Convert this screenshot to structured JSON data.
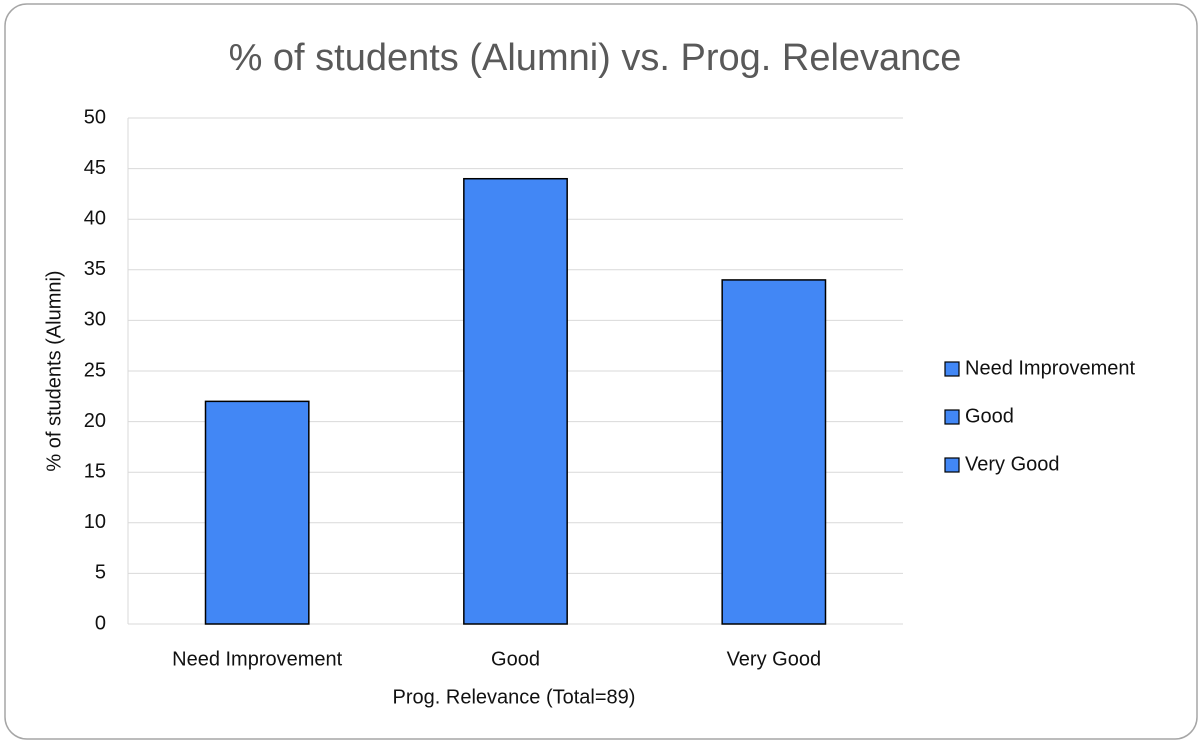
{
  "chart_data": {
    "type": "bar",
    "title": "% of students (Alumni) vs. Prog. Relevance",
    "x_label": "Prog. Relevance (Total=89)",
    "y_label": "% of students (Alumni)",
    "categories": [
      "Need Improvement",
      "Good",
      "Very Good"
    ],
    "values": [
      22,
      44,
      34
    ],
    "color": "#4287f5",
    "ylim": [
      0,
      50
    ],
    "yticks": [
      0,
      5,
      10,
      15,
      20,
      25,
      30,
      35,
      40,
      45,
      50
    ],
    "grid": true,
    "legend": "right"
  }
}
